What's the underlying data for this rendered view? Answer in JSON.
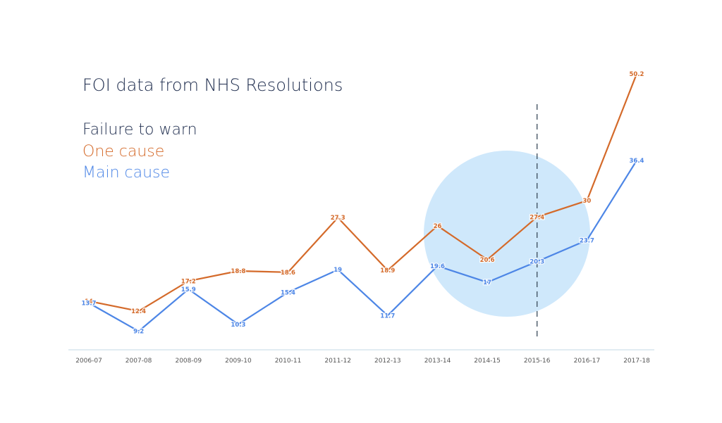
{
  "chart_data": {
    "type": "line",
    "title": "FOI data from NHS Resolutions",
    "subtitle": "Failure to warn",
    "categories": [
      "2006-07",
      "2007-08",
      "2008-09",
      "2009-10",
      "2010-11",
      "2011-12",
      "2012-13",
      "2013-14",
      "2014-15",
      "2015-16",
      "2016-17",
      "2017-18"
    ],
    "series": [
      {
        "name": "One cause",
        "color": "#d46a2a",
        "values": [
          14.0,
          12.4,
          17.2,
          18.8,
          18.6,
          27.3,
          18.9,
          26,
          20.6,
          27.4,
          30,
          50.2
        ]
      },
      {
        "name": "Main cause",
        "color": "#4d86e6",
        "values": [
          13.7,
          9.2,
          15.9,
          10.3,
          15.4,
          19,
          11.7,
          19.6,
          17,
          20.3,
          23.7,
          36.4
        ]
      }
    ],
    "data_labels": {
      "One cause": [
        "14",
        "12.4",
        "17.2",
        "18.8",
        "18.6",
        "27.3",
        "18.9",
        "26",
        "20.6",
        "27.4",
        "30",
        "50.2"
      ],
      "Main cause": [
        "13.7",
        "9.2",
        "15.9",
        "10.3",
        "15.4",
        "19",
        "11.7",
        "19.6",
        "17",
        "20.3",
        "23.7",
        "36.4"
      ]
    },
    "ylim": [
      0,
      54
    ],
    "grid": false,
    "reference_line_at": "2015-16",
    "highlight_circle_color": "#cfe8fb",
    "text_color": "#1f2d4e",
    "axis_color": "#cfe0ea"
  }
}
